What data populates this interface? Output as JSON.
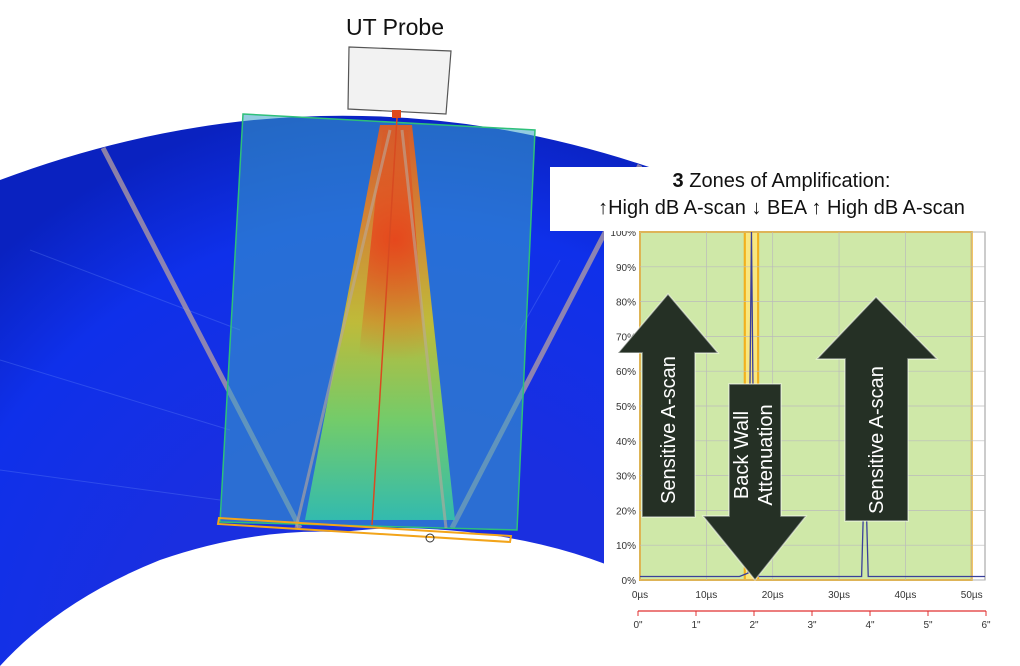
{
  "probe": {
    "label": "UT Probe"
  },
  "title": {
    "count": "3",
    "heading": " Zones of Amplification:",
    "subtitle": "↑High dB A-scan ↓ BEA  ↑ High dB A-scan"
  },
  "arrows": {
    "left": "Sensitive A-scan",
    "middle_line1": "Back Wall",
    "middle_line2": "Attenuation",
    "right": "Sensitive A-scan"
  },
  "chart_data": {
    "type": "line",
    "y_ticks": [
      "0%",
      "10%",
      "20%",
      "30%",
      "40%",
      "50%",
      "60%",
      "70%",
      "80%",
      "90%",
      "100%"
    ],
    "x_ticks_time": [
      "0µs",
      "10µs",
      "20µs",
      "30µs",
      "40µs",
      "50µs"
    ],
    "x_ticks_depth": [
      "0\"",
      "1\"",
      "2\"",
      "3\"",
      "4\"",
      "5\"",
      "6\""
    ],
    "ylim": [
      0,
      100
    ],
    "xlim_us": [
      0,
      52
    ],
    "gates_us": [
      [
        0,
        15.8
      ],
      [
        17.8,
        50
      ]
    ],
    "bea_gate_us": [
      15.8,
      17.8
    ],
    "signal": [
      [
        0,
        1
      ],
      [
        15,
        1
      ],
      [
        16.3,
        2
      ],
      [
        16.8,
        100
      ],
      [
        17.3,
        2
      ],
      [
        18,
        1
      ],
      [
        33.4,
        1
      ],
      [
        33.9,
        36
      ],
      [
        34.4,
        1
      ],
      [
        52,
        1
      ]
    ],
    "colors": {
      "gate_fill": "#cfe8a8",
      "gate_edge": "#f2b01e",
      "signal": "#3a3f9a",
      "depth_axis": "#e03030"
    }
  }
}
